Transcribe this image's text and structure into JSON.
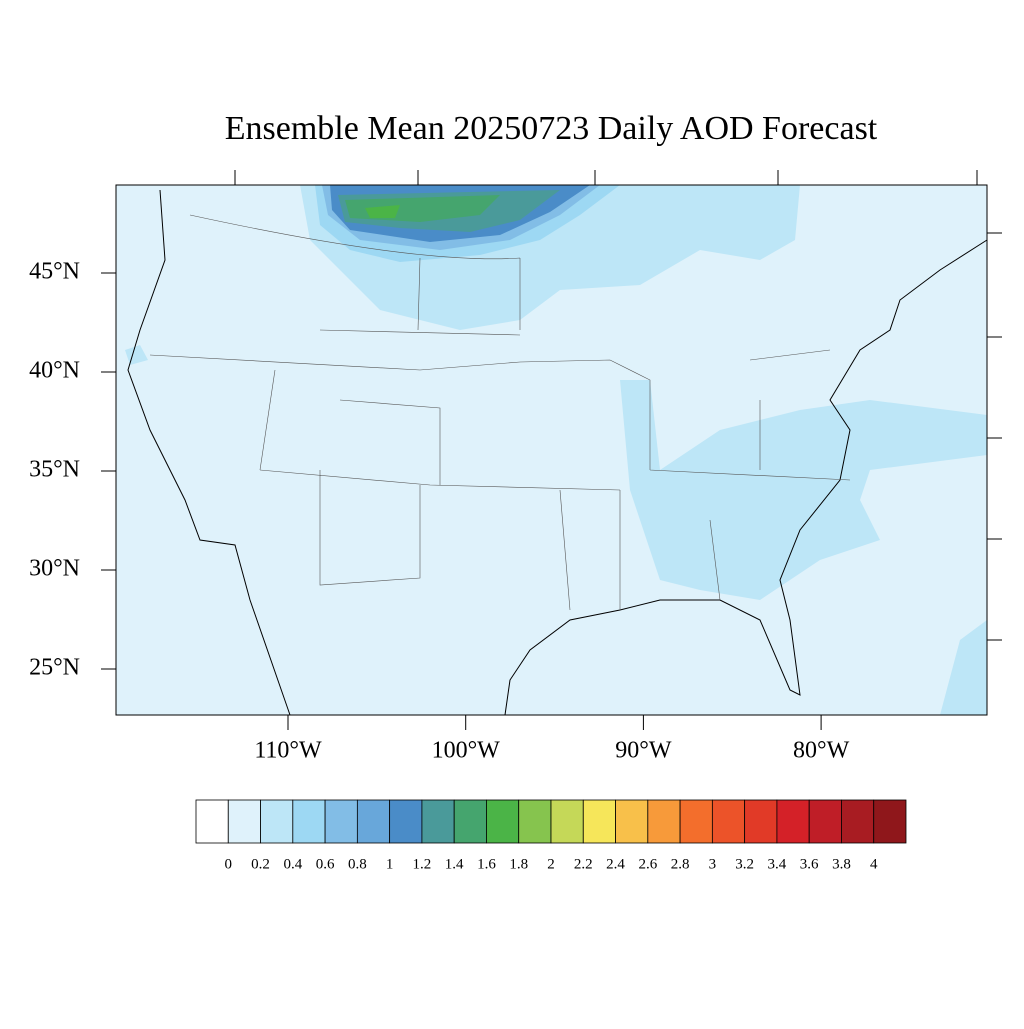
{
  "title": "Ensemble Mean 20250723 Daily AOD Forecast",
  "lat_ticks": [
    {
      "value": 45,
      "label": "45°N"
    },
    {
      "value": 40,
      "label": "40°N"
    },
    {
      "value": 35,
      "label": "35°N"
    },
    {
      "value": 30,
      "label": "30°N"
    },
    {
      "value": 25,
      "label": "25°N"
    }
  ],
  "lon_ticks": [
    {
      "value": -110,
      "label": "110°W"
    },
    {
      "value": -100,
      "label": "100°W"
    },
    {
      "value": -90,
      "label": "90°W"
    },
    {
      "value": -80,
      "label": "80°W"
    }
  ],
  "colorbar": {
    "levels": [
      0,
      0.2,
      0.4,
      0.6,
      0.8,
      1,
      1.2,
      1.4,
      1.6,
      1.8,
      2,
      2.2,
      2.4,
      2.6,
      2.8,
      3,
      3.2,
      3.4,
      3.6,
      3.8,
      4
    ],
    "colors": [
      "#ffffff",
      "#dff2fb",
      "#bde6f7",
      "#9dd8f3",
      "#82bde6",
      "#68a7da",
      "#4a8cc8",
      "#4a9a9a",
      "#45a56e",
      "#4bb447",
      "#86c44e",
      "#c5d858",
      "#f6e65a",
      "#f8c04a",
      "#f79a3a",
      "#f36e2c",
      "#ec5329",
      "#e13a27",
      "#d42128",
      "#bf1e27",
      "#a81c22",
      "#8f171b"
    ]
  }
}
